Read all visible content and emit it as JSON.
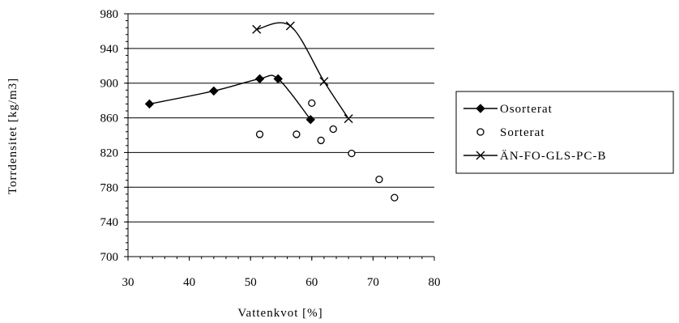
{
  "chart_data": {
    "type": "scatter",
    "title": "",
    "xlabel": "Vattenkvot [%]",
    "ylabel": "Torrdensitet [kg/m3]",
    "xlim": [
      30,
      80
    ],
    "ylim": [
      700,
      980
    ],
    "xticks": [
      "30",
      "40",
      "50",
      "60",
      "70",
      "80"
    ],
    "yticks": [
      "700",
      "740",
      "780",
      "820",
      "860",
      "900",
      "940",
      "980"
    ],
    "grid": "horizontal",
    "legend_position": "right",
    "series": [
      {
        "name": "Osorterat",
        "marker": "diamond",
        "line": "smooth",
        "color": "#000000",
        "points": [
          [
            33.5,
            876
          ],
          [
            44,
            891
          ],
          [
            51.5,
            905
          ],
          [
            54.5,
            905
          ],
          [
            59.8,
            858
          ]
        ]
      },
      {
        "name": "Sorterat",
        "marker": "circle-open",
        "line": "none",
        "color": "#000000",
        "points": [
          [
            51.5,
            841
          ],
          [
            57.5,
            841
          ],
          [
            60,
            877
          ],
          [
            61.5,
            834
          ],
          [
            63.5,
            847
          ],
          [
            66.5,
            819
          ],
          [
            71,
            789
          ],
          [
            73.5,
            768
          ]
        ]
      },
      {
        "name": "ÄN-FO-GLS-PC-B",
        "marker": "x",
        "line": "smooth",
        "color": "#000000",
        "points": [
          [
            51,
            962
          ],
          [
            56.5,
            966
          ],
          [
            62,
            902
          ],
          [
            66,
            859
          ]
        ]
      }
    ]
  }
}
